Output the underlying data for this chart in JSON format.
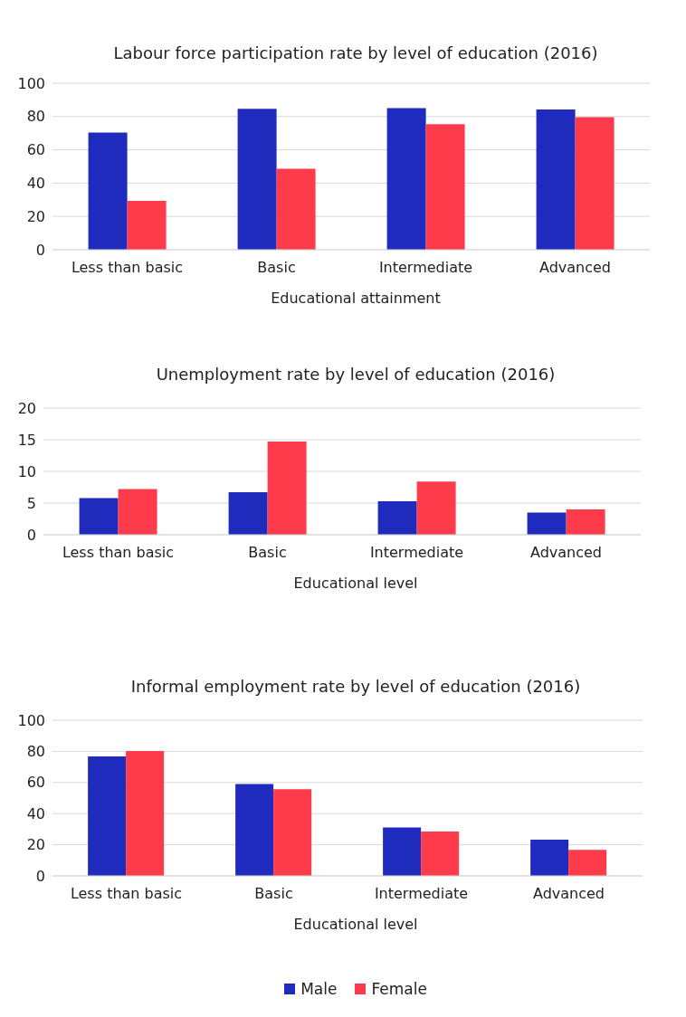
{
  "chart_data": [
    {
      "type": "bar",
      "title": "Labour force participation rate by level of education (2016)",
      "xlabel": "Educational attainment",
      "categories": [
        "Less than basic",
        "Basic",
        "Intermediate",
        "Advanced"
      ],
      "series": [
        {
          "color": "#1f2bbd",
          "values": [
            70.4,
            84.6,
            85.1,
            84.3
          ]
        },
        {
          "color": "#fe3b4b",
          "values": [
            29.3,
            48.7,
            75.4,
            79.6
          ]
        }
      ],
      "ylim": [
        0,
        100
      ],
      "yticks": [
        0,
        20,
        40,
        60,
        80,
        100
      ],
      "grid": "y"
    },
    {
      "type": "bar",
      "title": "Unemployment rate by level of education (2016)",
      "xlabel": "Educational level",
      "categories": [
        "Less than basic",
        "Basic",
        "Intermediate",
        "Advanced"
      ],
      "series": [
        {
          "color": "#1f2bbd",
          "values": [
            5.8,
            6.7,
            5.3,
            3.5
          ]
        },
        {
          "color": "#fe3b4b",
          "values": [
            7.2,
            14.7,
            8.4,
            4.0
          ]
        }
      ],
      "ylim": [
        0,
        20
      ],
      "yticks": [
        0,
        5,
        10,
        15,
        20
      ],
      "grid": "y"
    },
    {
      "type": "bar",
      "title": "Informal employment rate by level of education (2016)",
      "xlabel": "Educational level",
      "categories": [
        "Less than basic",
        "Basic",
        "Intermediate",
        "Advanced"
      ],
      "series": [
        {
          "name": "Male",
          "color": "#1f2bbd",
          "values": [
            76.8,
            59.0,
            31.1,
            23.2
          ]
        },
        {
          "name": "Female",
          "color": "#fe3b4b",
          "values": [
            80.2,
            55.6,
            28.5,
            16.7
          ]
        }
      ],
      "ylim": [
        0,
        100
      ],
      "yticks": [
        0,
        20,
        40,
        60,
        80,
        100
      ],
      "grid": "y",
      "legend": "bottom"
    }
  ]
}
